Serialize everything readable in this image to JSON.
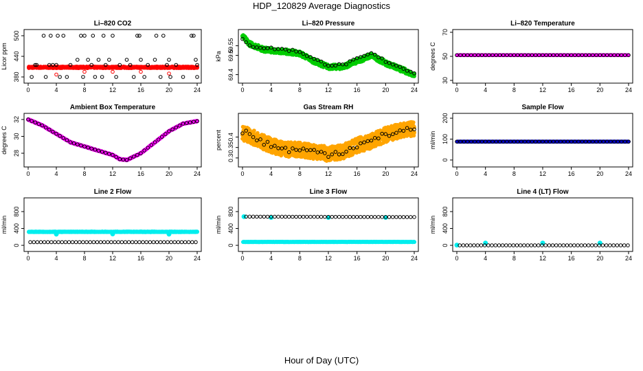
{
  "page": {
    "title": "HDP_120829  Average Diagnostics",
    "xlabel": "Hour of Day (UTC)"
  },
  "chart_data": [
    {
      "id": "co2",
      "type": "scatter",
      "title": "Li–820 CO2",
      "ylabel": "Licor ppm",
      "xlim": [
        0,
        24
      ],
      "ylim": [
        370,
        510
      ],
      "yticks": [
        380,
        440,
        500
      ],
      "xticks": [
        0,
        4,
        8,
        12,
        16,
        20,
        24
      ],
      "series": [
        {
          "name": "avg",
          "kind": "band",
          "color": "#ff0000",
          "center": 408,
          "spread": 2,
          "step": 0.1,
          "x0": 0.1,
          "x1": 24
        },
        {
          "name": "outliers",
          "kind": "points",
          "color": "#000000",
          "shape": "circle",
          "points": [
            [
              0.5,
              380
            ],
            [
              1,
              415
            ],
            [
              1.2,
              415
            ],
            [
              2.2,
              500
            ],
            [
              2.5,
              380
            ],
            [
              3,
              415
            ],
            [
              3.2,
              500
            ],
            [
              3.5,
              415
            ],
            [
              4,
              415
            ],
            [
              4.2,
              500
            ],
            [
              4.5,
              380
            ],
            [
              5,
              500
            ],
            [
              5.5,
              380
            ],
            [
              6,
              415
            ],
            [
              7,
              430
            ],
            [
              7.5,
              500
            ],
            [
              7.8,
              380
            ],
            [
              8,
              500
            ],
            [
              8.5,
              430
            ],
            [
              9,
              415
            ],
            [
              9.2,
              500
            ],
            [
              9.5,
              380
            ],
            [
              10,
              430
            ],
            [
              10.5,
              380
            ],
            [
              10.7,
              500
            ],
            [
              11,
              415
            ],
            [
              11.5,
              430
            ],
            [
              12,
              500
            ],
            [
              12.5,
              380
            ],
            [
              13,
              415
            ],
            [
              14,
              430
            ],
            [
              14.5,
              415
            ],
            [
              15,
              380
            ],
            [
              15.5,
              500
            ],
            [
              15.8,
              500
            ],
            [
              16,
              430
            ],
            [
              16.5,
              380
            ],
            [
              17,
              415
            ],
            [
              18,
              430
            ],
            [
              18.2,
              500
            ],
            [
              18.8,
              380
            ],
            [
              19.2,
              500
            ],
            [
              19.7,
              415
            ],
            [
              20,
              430
            ],
            [
              20.2,
              380
            ],
            [
              21,
              415
            ],
            [
              22,
              380
            ],
            [
              23.2,
              500
            ],
            [
              23.5,
              500
            ],
            [
              23.8,
              430
            ],
            [
              24,
              415
            ],
            [
              24,
              380
            ]
          ]
        },
        {
          "name": "high",
          "kind": "points",
          "color": "#ff0000",
          "shape": "circle",
          "points": [
            [
              4,
              387
            ],
            [
              8,
              395
            ],
            [
              12,
              395
            ],
            [
              16,
              395
            ],
            [
              20,
              390
            ]
          ]
        }
      ]
    },
    {
      "id": "pressure",
      "type": "scatter",
      "title": "Li–820 Pressure",
      "ylabel": "kPa",
      "xlim": [
        0,
        24
      ],
      "ylim": [
        69.37,
        69.62
      ],
      "yticks": [
        69.4,
        69.5,
        69.55
      ],
      "xticks": [
        0,
        4,
        8,
        12,
        16,
        20,
        24
      ],
      "series": [
        {
          "name": "raw",
          "kind": "band",
          "color": "#00cc00",
          "curve": [
            [
              0,
              69.6
            ],
            [
              1,
              69.56
            ],
            [
              3,
              69.53
            ],
            [
              6,
              69.52
            ],
            [
              8,
              69.51
            ],
            [
              10,
              69.47
            ],
            [
              12,
              69.44
            ],
            [
              14,
              69.44
            ],
            [
              16,
              69.47
            ],
            [
              18,
              69.5
            ],
            [
              20,
              69.46
            ],
            [
              22,
              69.43
            ],
            [
              24,
              69.4
            ]
          ],
          "spread": 0.012,
          "step": 0.1
        },
        {
          "name": "avg",
          "kind": "curvepoints",
          "color": "#000000",
          "curve": [
            [
              0,
              69.58
            ],
            [
              1,
              69.55
            ],
            [
              3,
              69.54
            ],
            [
              6,
              69.53
            ],
            [
              8,
              69.52
            ],
            [
              10,
              69.48
            ],
            [
              12,
              69.45
            ],
            [
              14,
              69.45
            ],
            [
              16,
              69.48
            ],
            [
              18,
              69.51
            ],
            [
              20,
              69.47
            ],
            [
              22,
              69.44
            ],
            [
              24,
              69.41
            ]
          ],
          "spread": 0.006,
          "step": 0.5
        }
      ]
    },
    {
      "id": "temp820",
      "type": "scatter",
      "title": "Li–820 Temperature",
      "ylabel": "degrees C",
      "xlim": [
        0,
        24
      ],
      "ylim": [
        30,
        70
      ],
      "yticks": [
        30,
        50,
        70
      ],
      "xticks": [
        0,
        4,
        8,
        12,
        16,
        20,
        24
      ],
      "series": [
        {
          "name": "raw",
          "kind": "band",
          "color": "#ff00ff",
          "center": 51,
          "spread": 0,
          "step": 0.15,
          "x0": 0.1,
          "x1": 24
        },
        {
          "name": "avg",
          "kind": "curvepoints",
          "color": "#000000",
          "curve": [
            [
              0,
              51
            ],
            [
              24,
              51
            ]
          ],
          "spread": 0,
          "step": 0.5
        }
      ]
    },
    {
      "id": "boxtemp",
      "type": "scatter",
      "title": "Ambient Box Temperature",
      "ylabel": "degrees C",
      "xlim": [
        0,
        24
      ],
      "ylim": [
        26.7,
        32.4
      ],
      "yticks": [
        28,
        30,
        32
      ],
      "xticks": [
        0,
        4,
        8,
        12,
        16,
        20,
        24
      ],
      "series": [
        {
          "name": "raw",
          "kind": "band",
          "color": "#ff00ff",
          "curve": [
            [
              0,
              32
            ],
            [
              2,
              31.3
            ],
            [
              4,
              30.3
            ],
            [
              6,
              29.3
            ],
            [
              8,
              28.8
            ],
            [
              10,
              28.3
            ],
            [
              12,
              27.8
            ],
            [
              13,
              27.3
            ],
            [
              14,
              27.2
            ],
            [
              16,
              28
            ],
            [
              18,
              29.3
            ],
            [
              20,
              30.6
            ],
            [
              22,
              31.5
            ],
            [
              24,
              31.8
            ]
          ],
          "spread": 0.05,
          "step": 0.1
        },
        {
          "name": "avg",
          "kind": "curvepoints",
          "color": "#000000",
          "curve": [
            [
              0,
              32
            ],
            [
              2,
              31.3
            ],
            [
              4,
              30.3
            ],
            [
              6,
              29.3
            ],
            [
              8,
              28.8
            ],
            [
              10,
              28.3
            ],
            [
              12,
              27.8
            ],
            [
              13,
              27.3
            ],
            [
              14,
              27.2
            ],
            [
              16,
              28
            ],
            [
              18,
              29.3
            ],
            [
              20,
              30.6
            ],
            [
              22,
              31.5
            ],
            [
              24,
              31.8
            ]
          ],
          "spread": 0,
          "step": 0.5
        }
      ]
    },
    {
      "id": "rh",
      "type": "scatter",
      "title": "Gas Stream RH",
      "ylabel": "percent",
      "xlim": [
        0,
        24
      ],
      "ylim": [
        0.27,
        0.5
      ],
      "yticks": [
        0.3,
        0.35,
        0.4
      ],
      "xticks": [
        0,
        4,
        8,
        12,
        16,
        20,
        24
      ],
      "series": [
        {
          "name": "raw",
          "kind": "band",
          "color": "#ffa500",
          "curve": [
            [
              0,
              0.42
            ],
            [
              2,
              0.39
            ],
            [
              4,
              0.36
            ],
            [
              6,
              0.34
            ],
            [
              8,
              0.34
            ],
            [
              10,
              0.33
            ],
            [
              12,
              0.32
            ],
            [
              14,
              0.33
            ],
            [
              16,
              0.36
            ],
            [
              18,
              0.38
            ],
            [
              20,
              0.41
            ],
            [
              22,
              0.43
            ],
            [
              24,
              0.44
            ]
          ],
          "spread": 0.035,
          "step": 0.06
        },
        {
          "name": "avg",
          "kind": "curvepoints",
          "color": "#000000",
          "curve": [
            [
              0,
              0.43
            ],
            [
              2,
              0.39
            ],
            [
              4,
              0.36
            ],
            [
              6,
              0.34
            ],
            [
              8,
              0.34
            ],
            [
              10,
              0.33
            ],
            [
              12,
              0.32
            ],
            [
              14,
              0.33
            ],
            [
              16,
              0.36
            ],
            [
              18,
              0.38
            ],
            [
              20,
              0.41
            ],
            [
              22,
              0.43
            ],
            [
              24,
              0.44
            ]
          ],
          "spread": 0.015,
          "step": 0.5
        }
      ]
    },
    {
      "id": "sampleflow",
      "type": "scatter",
      "title": "Sample Flow",
      "ylabel": "ml/min",
      "xlim": [
        0,
        24
      ],
      "ylim": [
        -20,
        210
      ],
      "yticks": [
        0,
        100,
        200
      ],
      "xticks": [
        0,
        4,
        8,
        12,
        16,
        20,
        24
      ],
      "series": [
        {
          "name": "raw",
          "kind": "band",
          "color": "#0000cc",
          "center": 88,
          "spread": 0,
          "step": 0.1,
          "x0": 0.1,
          "x1": 24
        },
        {
          "name": "avg",
          "kind": "curvepoints",
          "color": "#000000",
          "curve": [
            [
              0,
              88
            ],
            [
              24,
              88
            ]
          ],
          "spread": 0,
          "step": 0.5
        }
      ]
    },
    {
      "id": "line2",
      "type": "scatter",
      "title": "Line 2 Flow",
      "ylabel": "ml/min",
      "xlim": [
        0,
        24
      ],
      "ylim": [
        -80,
        1060
      ],
      "yticks": [
        0,
        400,
        800
      ],
      "xticks": [
        0,
        4,
        8,
        12,
        16,
        20,
        24
      ],
      "series": [
        {
          "name": "raw",
          "kind": "band",
          "color": "#00eeee",
          "center": 320,
          "spread": 6,
          "step": 0.1,
          "x0": 0.1,
          "x1": 24
        },
        {
          "name": "dips",
          "kind": "points",
          "color": "#00eeee",
          "shape": "dot",
          "points": [
            [
              4,
              265
            ],
            [
              12,
              270
            ],
            [
              20,
              265
            ]
          ]
        },
        {
          "name": "avg",
          "kind": "curvepoints",
          "color": "#000000",
          "curve": [
            [
              0.3,
              75
            ],
            [
              24,
              75
            ]
          ],
          "spread": 0,
          "step": 0.5
        }
      ]
    },
    {
      "id": "line3",
      "type": "scatter",
      "title": "Line 3 Flow",
      "ylabel": "ml/min",
      "xlim": [
        0,
        24
      ],
      "ylim": [
        -80,
        1060
      ],
      "yticks": [
        0,
        400,
        800
      ],
      "xticks": [
        0,
        4,
        8,
        12,
        16,
        20,
        24
      ],
      "series": [
        {
          "name": "low",
          "kind": "band",
          "color": "#00eeee",
          "center": 80,
          "spread": 2,
          "step": 0.1,
          "x0": 0.1,
          "x1": 24
        },
        {
          "name": "start",
          "kind": "points",
          "color": "#00eeee",
          "shape": "dot",
          "points": [
            [
              0.2,
              680
            ],
            [
              4,
              660
            ],
            [
              12,
              660
            ],
            [
              20,
              660
            ]
          ]
        },
        {
          "name": "avg",
          "kind": "curvepoints",
          "color": "#000000",
          "curve": [
            [
              0.5,
              680
            ],
            [
              24,
              670
            ]
          ],
          "spread": 0,
          "step": 0.5
        }
      ]
    },
    {
      "id": "line4",
      "type": "scatter",
      "title": "Line 4 (LT) Flow",
      "ylabel": "ml/min",
      "xlim": [
        0,
        24
      ],
      "ylim": [
        -80,
        1060
      ],
      "yticks": [
        0,
        400,
        800
      ],
      "xticks": [
        0,
        4,
        8,
        12,
        16,
        20,
        24
      ],
      "series": [
        {
          "name": "spikes",
          "kind": "points",
          "color": "#00eeee",
          "shape": "dot",
          "points": [
            [
              0,
              5
            ],
            [
              4,
              55
            ],
            [
              12,
              55
            ],
            [
              20,
              55
            ]
          ]
        },
        {
          "name": "avg",
          "kind": "curvepoints",
          "color": "#000000",
          "curve": [
            [
              0.4,
              0
            ],
            [
              24,
              0
            ]
          ],
          "spread": 0,
          "step": 0.5
        }
      ]
    }
  ]
}
